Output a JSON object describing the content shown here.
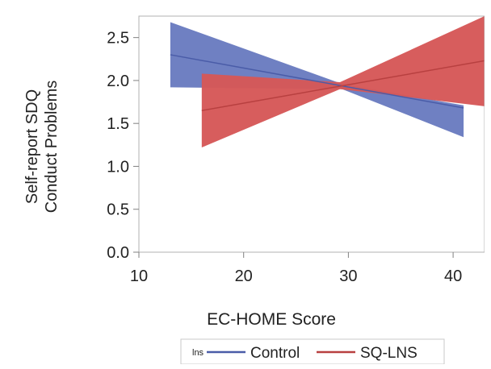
{
  "chart_data": {
    "type": "line",
    "xlabel": "EC-HOME Score",
    "ylabel_lines": [
      "Self-report SDQ",
      "Conduct Problems"
    ],
    "xlim": [
      10,
      43
    ],
    "ylim": [
      0,
      2.75
    ],
    "x_ticks": [
      10,
      20,
      30,
      40
    ],
    "y_ticks": [
      0.0,
      0.5,
      1.0,
      1.5,
      2.0,
      2.5
    ],
    "x_tick_labels": [
      "10",
      "20",
      "30",
      "40"
    ],
    "y_tick_labels": [
      "0.0",
      "0.5",
      "1.0",
      "1.5",
      "2.0",
      "2.5"
    ],
    "grid": false,
    "legend_position": "bottom",
    "legend_title": "lns",
    "series": [
      {
        "name": "Control",
        "color": "#4a5ca8",
        "band_color": "#6a7cc0",
        "x": [
          13,
          41
        ],
        "y": [
          2.3,
          1.68
        ],
        "band": {
          "x": [
            13,
            29.4,
            41
          ],
          "lower": [
            1.92,
            1.9,
            1.34
          ],
          "upper": [
            2.68,
            1.96,
            1.71
          ]
        }
      },
      {
        "name": "SQ-LNS",
        "color": "#b84040",
        "band_color": "#d65858",
        "x": [
          16,
          43
        ],
        "y": [
          1.65,
          2.23
        ],
        "band": {
          "x": [
            16,
            29.2,
            43
          ],
          "lower": [
            1.22,
            1.9,
            1.7
          ],
          "upper": [
            2.08,
            1.98,
            2.75
          ]
        }
      }
    ]
  }
}
